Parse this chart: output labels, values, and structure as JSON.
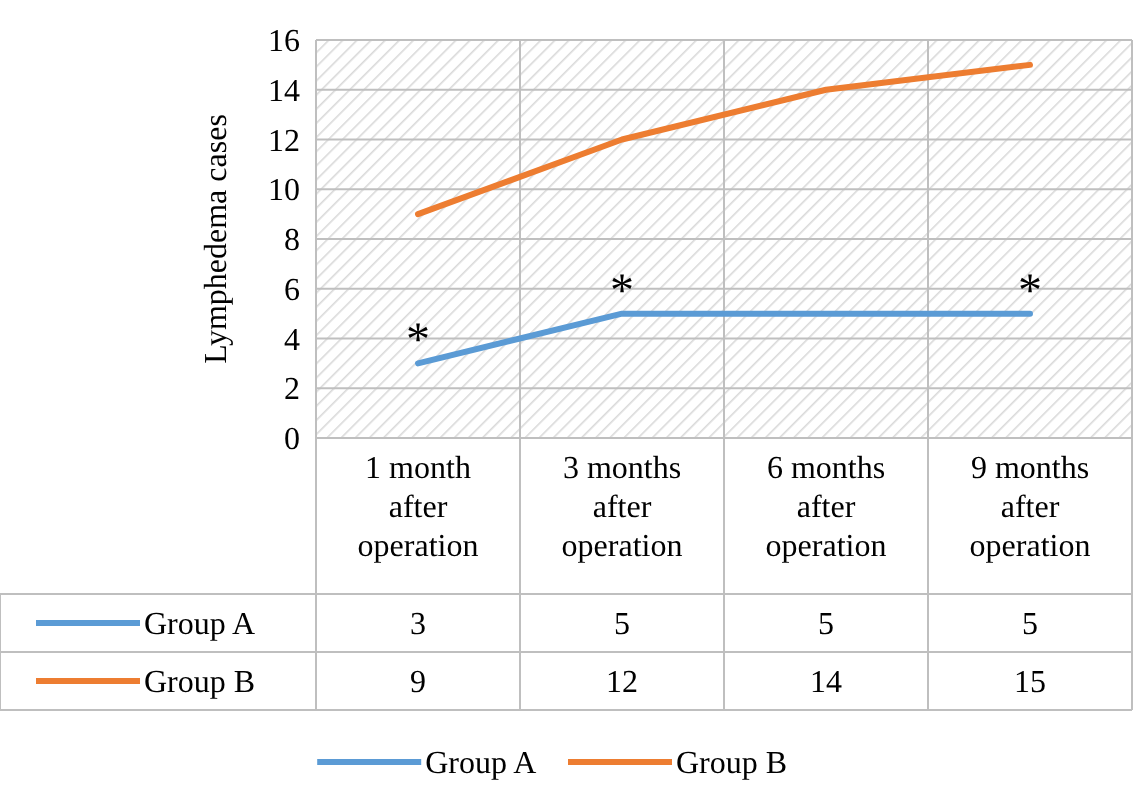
{
  "chart_data": {
    "type": "line",
    "ylabel": "Lymphedema cases",
    "categories": [
      "1 month after operation",
      "3 months after operation",
      "6 months after operation",
      "9 months after operation"
    ],
    "series": [
      {
        "name": "Group A",
        "color": "#5b9bd5",
        "values": [
          3,
          5,
          5,
          5
        ]
      },
      {
        "name": "Group B",
        "color": "#ed7d31",
        "values": [
          9,
          12,
          14,
          15
        ]
      }
    ],
    "ylim": [
      0,
      16
    ],
    "yticks": [
      0,
      2,
      4,
      6,
      8,
      10,
      12,
      14,
      16
    ],
    "grid": true,
    "data_labels": true,
    "legend": "bottom",
    "line_style": "solid",
    "annotations": [
      {
        "text": "*",
        "x": "1 month after operation",
        "y": 3
      },
      {
        "text": "*",
        "x": "3 months after operation",
        "y": 5
      },
      {
        "text": "*",
        "x": "9 months after operation",
        "y": 5
      }
    ]
  }
}
